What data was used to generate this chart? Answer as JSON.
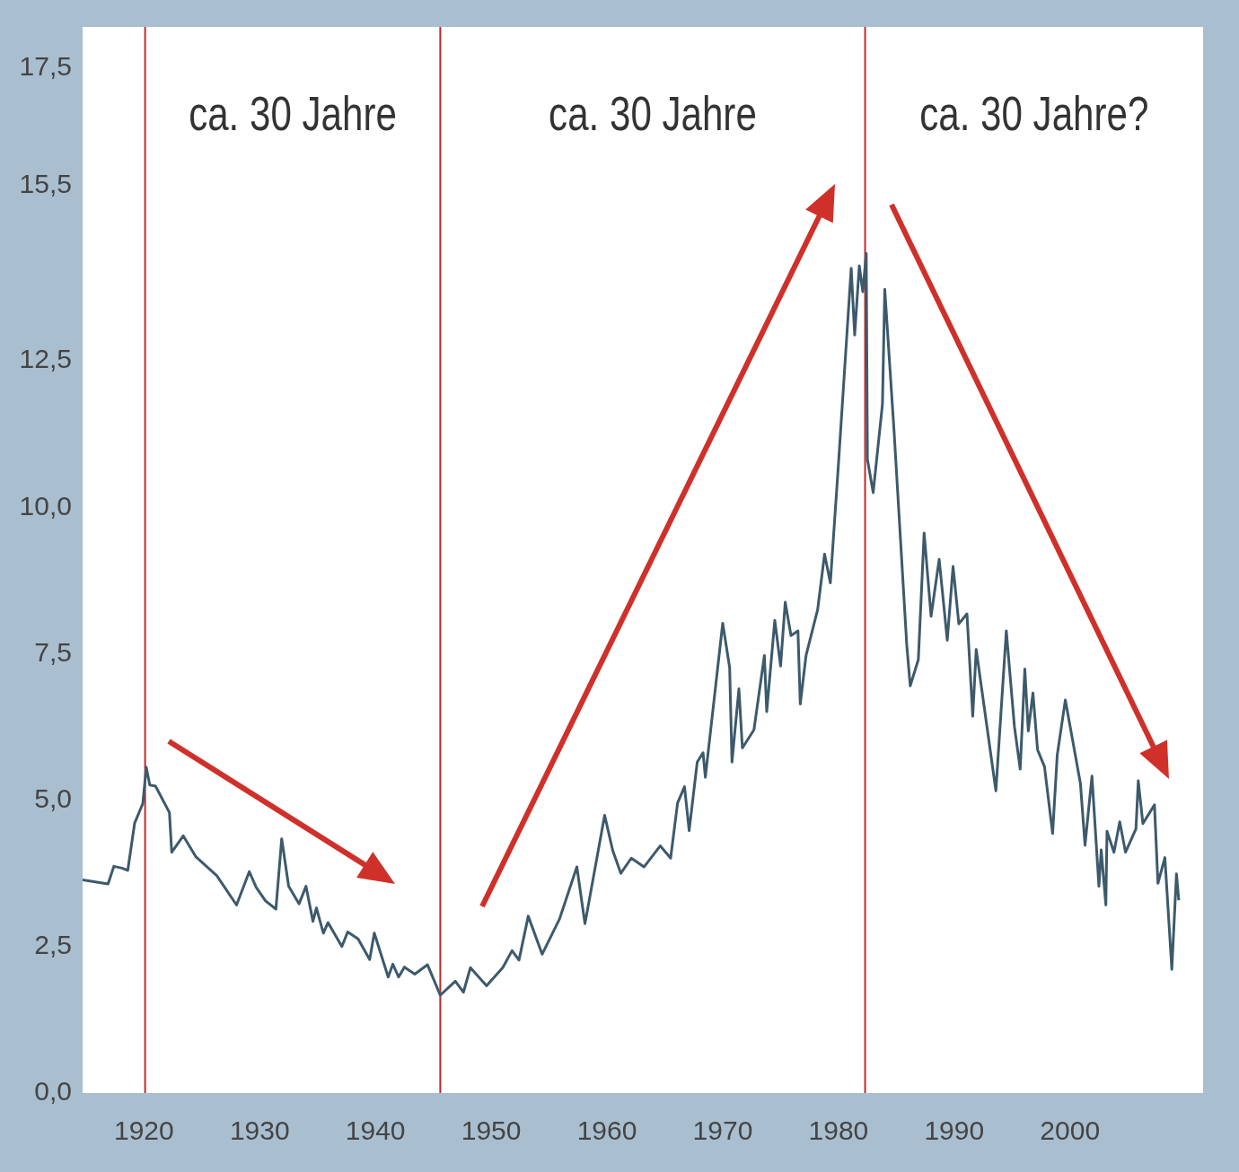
{
  "chart_data": {
    "type": "line",
    "annotations": [
      "ca. 30 Jahre",
      "ca. 30 Jahre",
      "ca. 30 Jahre?"
    ],
    "x": [
      1914.7,
      1916.9,
      1917.4,
      1918.1,
      1918.6,
      1919.2,
      1919.9,
      1920.2,
      1920.5,
      1921.0,
      1922.2,
      1922.4,
      1923.4,
      1924.5,
      1926.3,
      1928.0,
      1929.1,
      1929.7,
      1930.5,
      1931.4,
      1931.9,
      1932.5,
      1933.4,
      1934.0,
      1934.6,
      1934.9,
      1935.5,
      1935.9,
      1937.1,
      1937.6,
      1938.5,
      1939.5,
      1939.9,
      1941.1,
      1941.5,
      1942.0,
      1942.5,
      1943.4,
      1944.5,
      1945.6,
      1946.9,
      1947.6,
      1948.2,
      1949.6,
      1951.0,
      1951.8,
      1952.4,
      1953.2,
      1954.4,
      1955.9,
      1957.4,
      1958.1,
      1959.8,
      1960.5,
      1961.2,
      1962.1,
      1963.2,
      1964.6,
      1965.5,
      1966.1,
      1966.7,
      1967.1,
      1967.8,
      1968.3,
      1968.5,
      1970.0,
      1970.6,
      1970.8,
      1971.4,
      1971.7,
      1972.7,
      1973.6,
      1973.8,
      1974.5,
      1975.0,
      1975.4,
      1975.9,
      1976.5,
      1976.7,
      1977.2,
      1978.2,
      1978.8,
      1979.3,
      1980.0,
      1981.1,
      1981.4,
      1981.8,
      1982.1,
      1982.4,
      1982.5,
      1983.0,
      1983.8,
      1984.0,
      1984.8,
      1985.9,
      1986.2,
      1986.9,
      1987.4,
      1988.0,
      1988.7,
      1989.4,
      1989.9,
      1990.4,
      1991.1,
      1991.6,
      1991.9,
      1993.6,
      1994.5,
      1995.2,
      1995.7,
      1996.1,
      1996.4,
      1996.8,
      1997.2,
      1997.8,
      1998.5,
      1998.9,
      1999.6,
      2000.9,
      2001.3,
      2001.9,
      2002.5,
      2002.7,
      2003.1,
      2003.2,
      2003.8,
      2004.3,
      2004.8,
      2005.7,
      2005.9,
      2006.3,
      2007.3,
      2007.6,
      2008.2,
      2008.8,
      2009.2,
      2009.4
    ],
    "series": [
      {
        "color": "#3d5a6c",
        "values": [
          3.64,
          3.57,
          3.87,
          3.84,
          3.8,
          4.61,
          4.94,
          5.56,
          5.26,
          5.24,
          4.79,
          4.11,
          4.39,
          4.03,
          3.71,
          3.21,
          3.78,
          3.51,
          3.28,
          3.14,
          4.34,
          3.53,
          3.23,
          3.53,
          2.93,
          3.16,
          2.73,
          2.91,
          2.5,
          2.75,
          2.63,
          2.28,
          2.73,
          1.98,
          2.2,
          1.98,
          2.15,
          2.03,
          2.19,
          1.67,
          1.91,
          1.72,
          2.14,
          1.83,
          2.14,
          2.43,
          2.27,
          3.02,
          2.37,
          2.97,
          3.86,
          2.89,
          4.74,
          4.14,
          3.75,
          4.01,
          3.86,
          4.22,
          4.01,
          4.95,
          5.23,
          4.48,
          5.65,
          5.81,
          5.39,
          8.02,
          7.26,
          5.65,
          6.9,
          5.89,
          6.2,
          7.47,
          6.51,
          8.07,
          7.29,
          8.38,
          7.81,
          7.89,
          6.64,
          7.47,
          8.25,
          9.2,
          8.71,
          10.74,
          14.08,
          12.94,
          14.12,
          13.68,
          14.33,
          10.82,
          10.25,
          11.76,
          13.72,
          11.31,
          7.65,
          6.95,
          7.4,
          9.56,
          8.14,
          9.11,
          7.73,
          8.99,
          8.01,
          8.18,
          6.43,
          7.57,
          5.16,
          7.89,
          6.26,
          5.53,
          7.24,
          6.18,
          6.83,
          5.86,
          5.57,
          4.43,
          5.77,
          6.71,
          5.29,
          4.23,
          5.41,
          3.53,
          4.15,
          3.21,
          4.47,
          4.11,
          4.63,
          4.11,
          4.51,
          5.33,
          4.6,
          4.92,
          3.58,
          4.02,
          2.11,
          3.74,
          3.29
        ]
      }
    ],
    "xlim": [
      1914.7,
      2011.5
    ],
    "xticks": [
      1920,
      1930,
      1940,
      1950,
      1960,
      1970,
      1980,
      1990,
      2000
    ],
    "ylim": [
      0,
      18.2
    ],
    "yticks": [
      {
        "value": 0,
        "label": "0,0"
      },
      {
        "value": 2.5,
        "label": "2,5"
      },
      {
        "value": 5,
        "label": "5,0"
      },
      {
        "value": 7.5,
        "label": "7,5"
      },
      {
        "value": 10,
        "label": "10,0"
      },
      {
        "value": 12.5,
        "label": "12,5"
      },
      {
        "value": 15.5,
        "label": "15,5"
      },
      {
        "value": 17.5,
        "label": "17,5"
      }
    ],
    "ref_lines": [
      {
        "axis": "x",
        "value": 1920.1,
        "color": "#c0282a"
      },
      {
        "axis": "x",
        "value": 1945.6,
        "color": "#c0282a"
      },
      {
        "axis": "x",
        "value": 1982.3,
        "color": "#c0282a"
      }
    ],
    "grid": false,
    "legend": false,
    "marker": "none",
    "line_style": "solid"
  }
}
